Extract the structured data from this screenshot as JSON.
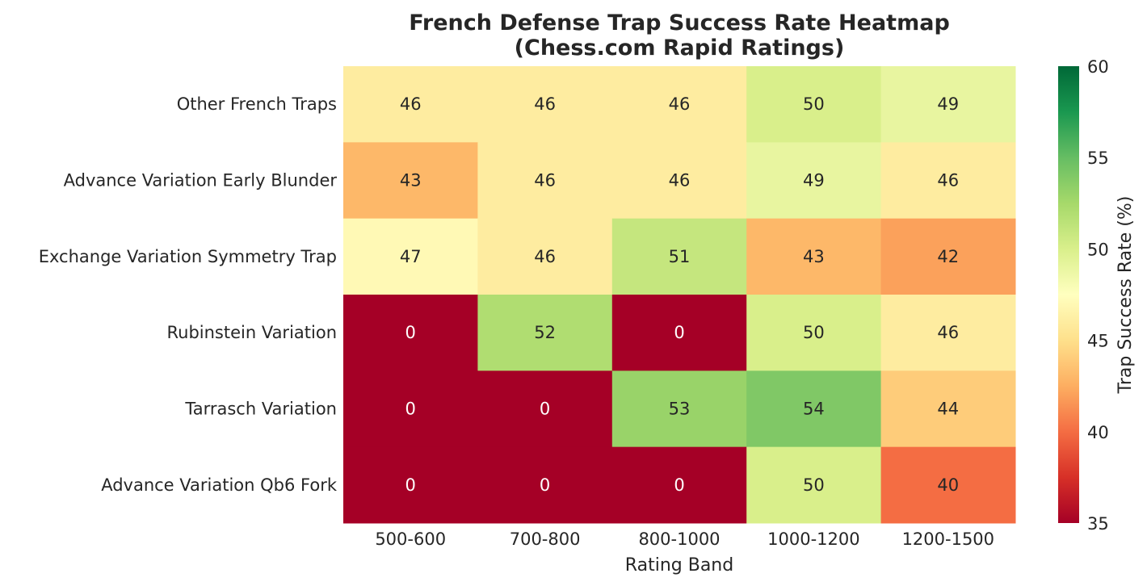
{
  "chart_data": {
    "type": "heatmap",
    "title": "French Defense Trap Success Rate Heatmap",
    "subtitle": "(Chess.com Rapid Ratings)",
    "xlabel": "Rating Band",
    "ylabel": "",
    "x_categories": [
      "500-600",
      "700-800",
      "800-1000",
      "1000-1200",
      "1200-1500"
    ],
    "y_categories": [
      "Other French Traps",
      "Advance Variation Early Blunder",
      "Exchange Variation Symmetry Trap",
      "Rubinstein Variation",
      "Tarrasch Variation",
      "Advance Variation Qb6 Fork"
    ],
    "values": [
      [
        46,
        46,
        46,
        50,
        49
      ],
      [
        43,
        46,
        46,
        49,
        46
      ],
      [
        47,
        46,
        51,
        43,
        42
      ],
      [
        0,
        52,
        0,
        50,
        46
      ],
      [
        0,
        0,
        53,
        54,
        44
      ],
      [
        0,
        0,
        0,
        50,
        40
      ]
    ],
    "colorbar": {
      "label": "Trap Success Rate (%)",
      "min": 35,
      "max": 60,
      "ticks": [
        35,
        40,
        45,
        50,
        55,
        60
      ],
      "colormap": "RdYlGn"
    },
    "annotations": true
  }
}
